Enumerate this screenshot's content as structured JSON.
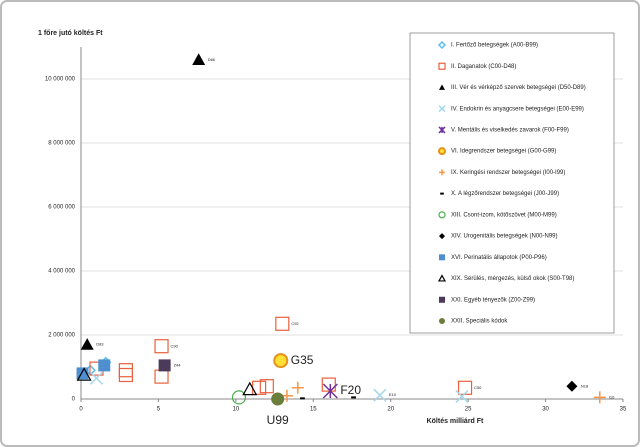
{
  "chart_data": {
    "type": "scatter",
    "title": "1 főre jutó költés Ft",
    "x_label": "Költés milliárd Ft",
    "xlim": [
      0,
      35
    ],
    "xticks": [
      0,
      5,
      10,
      15,
      20,
      25,
      30,
      35
    ],
    "ylim": [
      0,
      11000000
    ],
    "yticks": [
      0,
      {
        "value": 2000000,
        "label": "2 000 000"
      },
      {
        "value": 4000000,
        "label": "4 000 000"
      },
      {
        "value": 6000000,
        "label": "6 000 000"
      },
      {
        "value": 8000000,
        "label": "8 000 000"
      },
      {
        "value": 10000000,
        "label": "10 000 000"
      }
    ],
    "grid": true,
    "legend": "upper right",
    "series": [
      {
        "name": "I. Fertőző betegségek (A00-B99)",
        "color": "#5bc0eb",
        "marker": "diamond-open",
        "x": [
          1.6,
          0.6
        ],
        "values": [
          1150000,
          900000
        ]
      },
      {
        "name": "II. Daganatok (C00-D48)",
        "color": "#e8603c",
        "marker": "square-open",
        "x": [
          1.0,
          2.9,
          2.9,
          5.2,
          5.2,
          11.5,
          12.0,
          13.0,
          16.0,
          24.8
        ],
        "values": [
          950000,
          900000,
          750000,
          1650000,
          700000,
          350000,
          400000,
          2350000,
          450000,
          350000
        ],
        "point_labels": [
          null,
          null,
          null,
          "C90",
          null,
          null,
          null,
          "C92",
          null,
          "C50"
        ]
      },
      {
        "name": "III. Vér és vérképző szervek betegségei (D50-D89)",
        "color": "#000000",
        "marker": "triangle",
        "x": [
          7.6,
          0.4
        ],
        "values": [
          10600000,
          1700000
        ],
        "point_labels": [
          "D66",
          "D83"
        ]
      },
      {
        "name": "IV. Endokrin és anyagcsere betegségei (E00-E99)",
        "color": "#a6d8ec",
        "marker": "x",
        "x": [
          1.0,
          19.3,
          24.6
        ],
        "values": [
          650000,
          120000,
          80000
        ],
        "point_labels": [
          null,
          "E10",
          null
        ]
      },
      {
        "name": "V. Mentális és viselkedés zavarok (F00-F99)",
        "color": "#7030a0",
        "marker": "star",
        "x": [
          16.1
        ],
        "values": [
          250000
        ],
        "point_labels": [
          "F20"
        ]
      },
      {
        "name": "VI. Idegrendszer betegségei (G00-G99)",
        "color": "#e6901c",
        "marker": "circle-ring",
        "x": [
          12.9
        ],
        "values": [
          1200000
        ],
        "point_labels": [
          "G35"
        ]
      },
      {
        "name": "IX. Keringési rendszer betegségei (I00-I99)",
        "color": "#f79646",
        "marker": "plus",
        "x": [
          14.0,
          13.3,
          33.5
        ],
        "values": [
          350000,
          100000,
          50000
        ],
        "point_labels": [
          null,
          null,
          "I10"
        ]
      },
      {
        "name": "X. A légzőrendszer betegségei (J00-J99)",
        "color": "#000000",
        "marker": "dash",
        "x": [
          14.3,
          17.6
        ],
        "values": [
          20000,
          50000
        ]
      },
      {
        "name": "XIII. Csont-izom, kötőszövet (M00-M99)",
        "color": "#4caf50",
        "marker": "circle-open",
        "x": [
          10.2
        ],
        "values": [
          50000
        ]
      },
      {
        "name": "XIV. Urogenitális betegségek (N00-N99)",
        "color": "#000000",
        "marker": "diamond",
        "x": [
          31.7
        ],
        "values": [
          400000
        ],
        "point_labels": [
          "N18"
        ]
      },
      {
        "name": "XVI. Perinatális állapotok (P00-P96)",
        "color": "#4f8fd0",
        "marker": "square",
        "x": [
          0.1,
          1.5
        ],
        "values": [
          800000,
          1050000
        ]
      },
      {
        "name": "XIX. Sérülés, mérgezés, külső okok (S00-T98)",
        "color": "#000000",
        "marker": "triangle-open",
        "x": [
          0.2,
          10.9
        ],
        "values": [
          750000,
          300000
        ]
      },
      {
        "name": "XXI. Egyéb tényezők (Z00-Z99)",
        "color": "#4b3a5a",
        "marker": "square",
        "x": [
          5.4
        ],
        "values": [
          1050000
        ],
        "point_labels": [
          "Z44"
        ]
      },
      {
        "name": "XXII. Speciális kódok",
        "color": "#6b7d3a",
        "marker": "circle",
        "x": [
          12.7
        ],
        "values": [
          0
        ],
        "point_labels": [
          "U99"
        ]
      }
    ]
  }
}
